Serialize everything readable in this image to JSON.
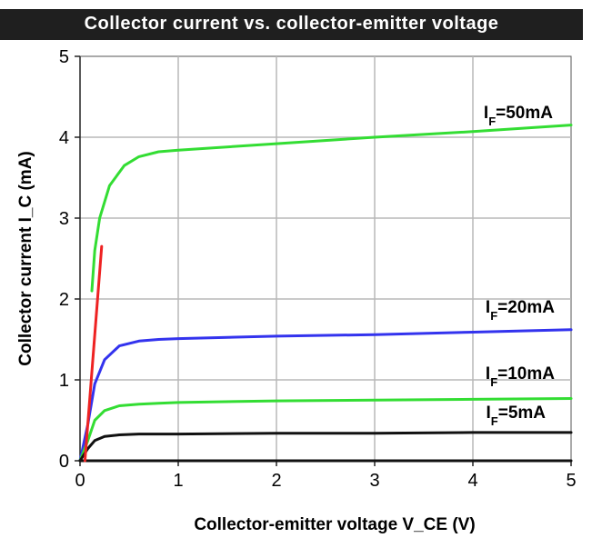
{
  "chart_data": {
    "type": "line",
    "title": "Collector current vs. collector-emitter voltage",
    "xlabel": "Collector-emitter voltage V_CE (V)",
    "ylabel": "Collector current I_C (mA)",
    "xlim": [
      0,
      5
    ],
    "ylim": [
      0,
      5
    ],
    "xticks": [
      "0",
      "1",
      "2",
      "3",
      "4",
      "5"
    ],
    "yticks": [
      "0",
      "1",
      "2",
      "3",
      "4",
      "5"
    ],
    "grid": true,
    "series": [
      {
        "name": "I_F=50mA",
        "label_main": "I",
        "label_sub": "F",
        "label_rest": "=50mA",
        "color": "#33dd33",
        "x": [
          0.12,
          0.15,
          0.2,
          0.3,
          0.45,
          0.6,
          0.8,
          1.0,
          2.0,
          3.0,
          4.0,
          5.0
        ],
        "y": [
          2.1,
          2.6,
          3.0,
          3.4,
          3.65,
          3.76,
          3.82,
          3.84,
          3.92,
          4.0,
          4.07,
          4.15
        ]
      },
      {
        "name": "I_F=20mA",
        "label_main": "I",
        "label_sub": "F",
        "label_rest": "=20mA",
        "color": "#3333ee",
        "x": [
          0.0,
          0.08,
          0.15,
          0.25,
          0.4,
          0.6,
          0.8,
          1.0,
          2.0,
          3.0,
          4.0,
          5.0
        ],
        "y": [
          0.0,
          0.45,
          0.95,
          1.25,
          1.42,
          1.48,
          1.5,
          1.51,
          1.54,
          1.56,
          1.59,
          1.62
        ]
      },
      {
        "name": "I_F=10mA",
        "label_main": "I",
        "label_sub": "F",
        "label_rest": "=10mA",
        "color": "#33dd33",
        "x": [
          0.0,
          0.08,
          0.15,
          0.25,
          0.4,
          0.6,
          0.8,
          1.0,
          2.0,
          3.0,
          4.0,
          5.0
        ],
        "y": [
          0.0,
          0.25,
          0.5,
          0.62,
          0.68,
          0.7,
          0.71,
          0.72,
          0.74,
          0.75,
          0.76,
          0.77
        ]
      },
      {
        "name": "I_F=5mA",
        "label_main": "I",
        "label_sub": "F",
        "label_rest": "=5mA",
        "color": "#111111",
        "x": [
          0.0,
          0.08,
          0.15,
          0.25,
          0.4,
          0.6,
          0.8,
          1.0,
          2.0,
          3.0,
          4.0,
          5.0
        ],
        "y": [
          0.0,
          0.15,
          0.25,
          0.3,
          0.32,
          0.33,
          0.33,
          0.33,
          0.34,
          0.34,
          0.35,
          0.35
        ]
      },
      {
        "name": "",
        "color": "#111111",
        "x": [
          0.0,
          5.0
        ],
        "y": [
          0.0,
          0.0
        ]
      },
      {
        "name": "",
        "color": "#ee2222",
        "x": [
          0.05,
          0.22
        ],
        "y": [
          0.0,
          2.65
        ]
      }
    ]
  }
}
